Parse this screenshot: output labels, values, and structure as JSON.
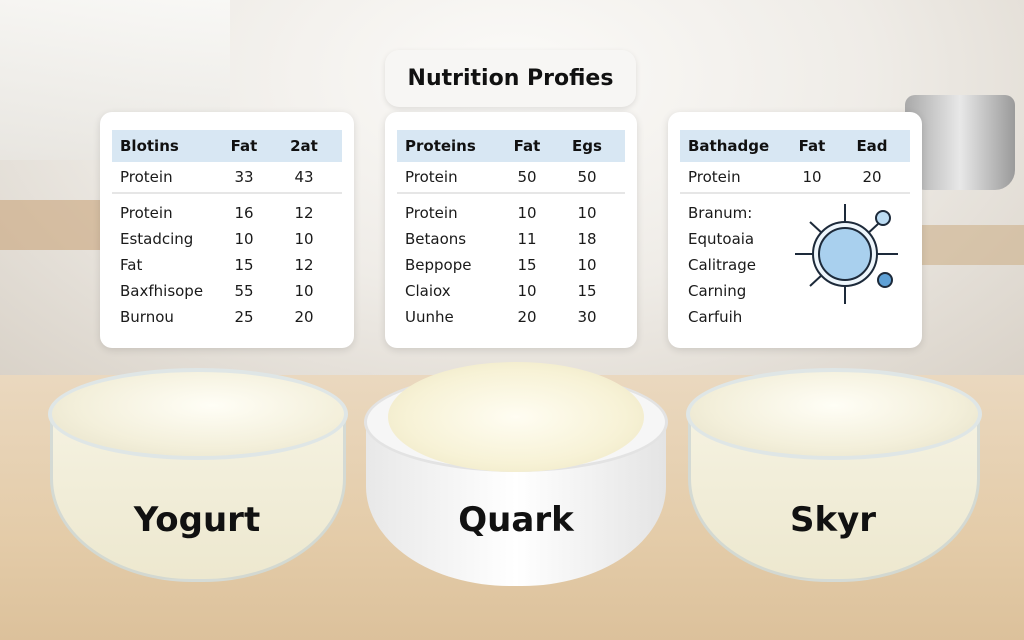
{
  "title": "Nutrition Profies",
  "panels": [
    {
      "header": [
        "Blotins",
        "Fat",
        "2at"
      ],
      "rows": [
        [
          "Protein",
          "33",
          "43"
        ],
        [
          "Protein",
          "16",
          "12"
        ],
        [
          "Estadcing",
          "10",
          "10"
        ],
        [
          "Fat",
          "15",
          "12"
        ],
        [
          "Baxfhisope",
          "55",
          "10"
        ],
        [
          "Burnou",
          "25",
          "20"
        ]
      ]
    },
    {
      "header": [
        "Proteins",
        "Fat",
        "Egs"
      ],
      "rows": [
        [
          "Protein",
          "50",
          "50"
        ],
        [
          "Protein",
          "10",
          "10"
        ],
        [
          "Betaons",
          "11",
          "18"
        ],
        [
          "Beppope",
          "15",
          "10"
        ],
        [
          "Claiox",
          "10",
          "15"
        ],
        [
          "Uunhe",
          "20",
          "30"
        ]
      ]
    },
    {
      "header": [
        "Bathadge",
        "Fat",
        "Ead"
      ],
      "rows": [
        [
          "Protein",
          "10",
          "20"
        ]
      ],
      "list": [
        "Branum:",
        "Equtoaia",
        "Calitrage",
        "Carning",
        "Carfuih"
      ],
      "icon": "molecule-icon"
    }
  ],
  "bowls": [
    "Yogurt",
    "Quark",
    "Skyr"
  ],
  "colors": {
    "header_bg": "#d8e7f3",
    "icon_blue": "#a9d0ee"
  }
}
